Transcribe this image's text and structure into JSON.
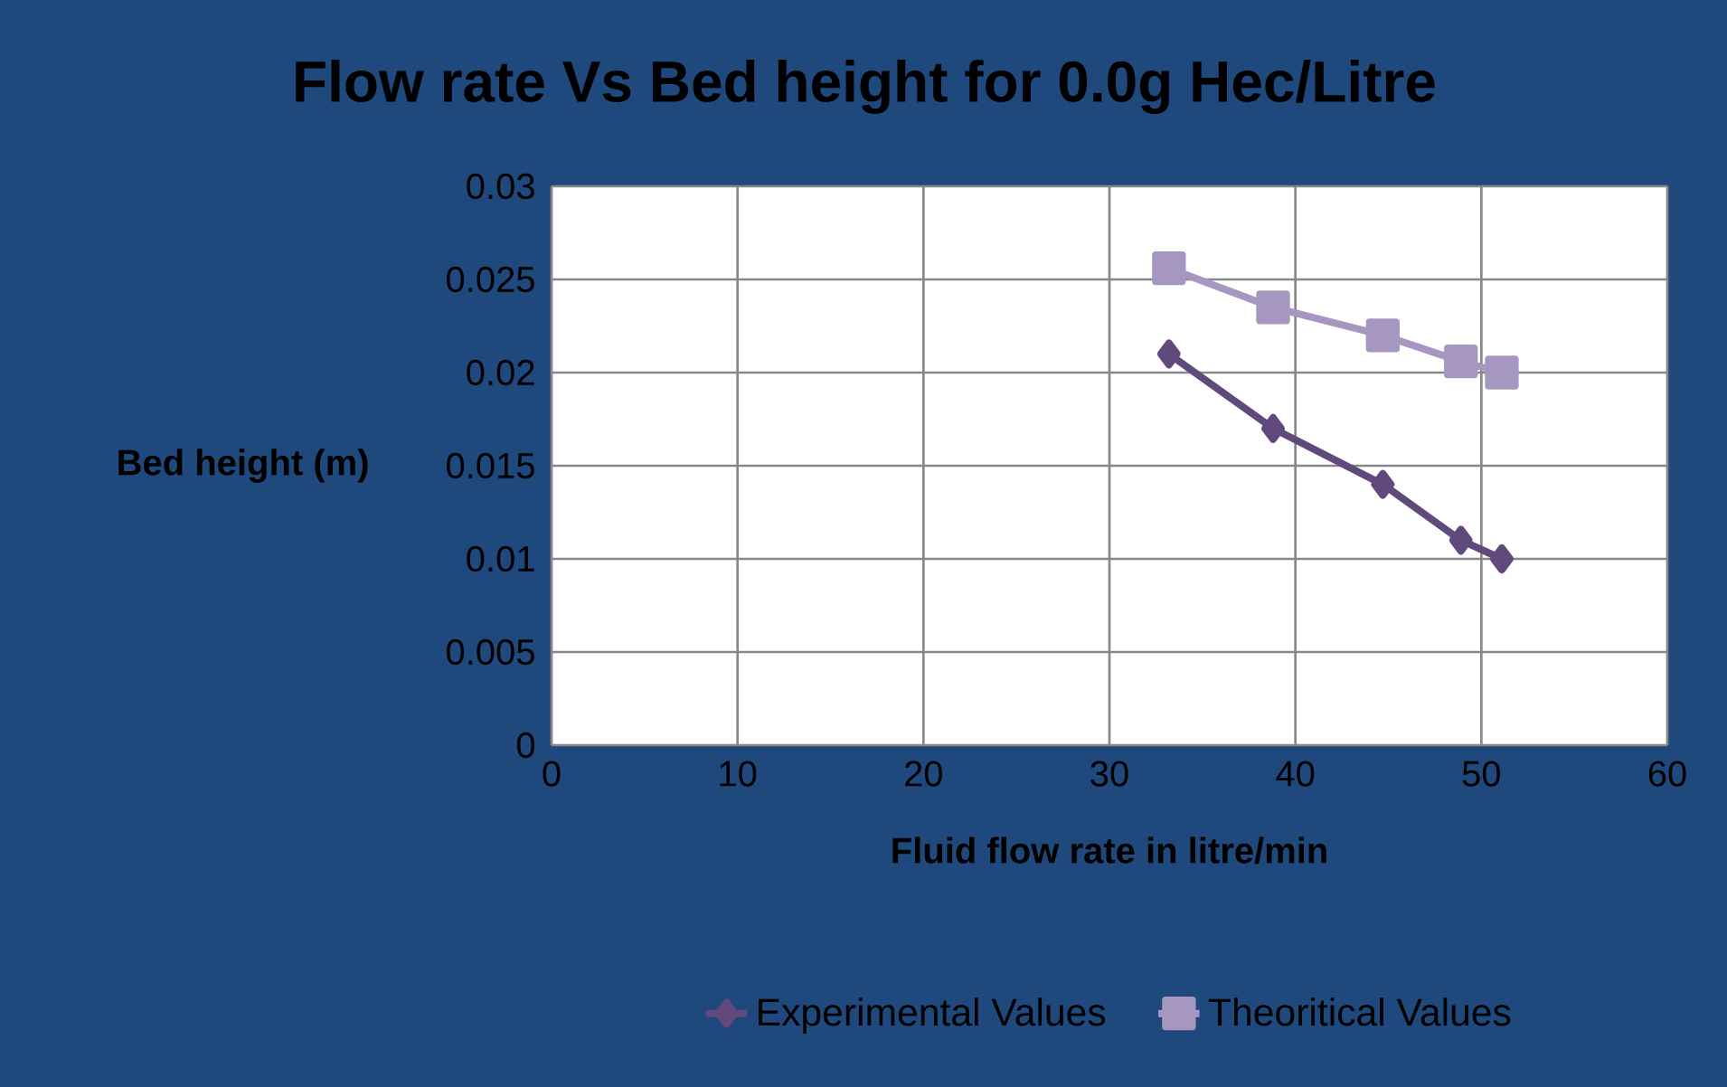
{
  "chart_data": {
    "type": "line",
    "title": "Flow rate Vs Bed height for 0.0g Hec/Litre",
    "xlabel": "Fluid flow rate in litre/min",
    "ylabel": "Bed height (m)",
    "series": [
      {
        "name": "Experimental Values",
        "color": "#604a7b",
        "marker": "diamond",
        "x": [
          33.2,
          38.8,
          44.7,
          48.9,
          51.1
        ],
        "values": [
          0.021,
          0.017,
          0.014,
          0.011,
          0.01
        ]
      },
      {
        "name": "Theoritical Values",
        "color": "#a597bf",
        "marker": "square",
        "x": [
          33.2,
          38.8,
          44.7,
          48.9,
          51.1
        ],
        "values": [
          0.0256,
          0.0235,
          0.022,
          0.0206,
          0.02
        ]
      }
    ],
    "xlim": [
      0,
      60
    ],
    "xticks": [
      0,
      10,
      20,
      30,
      40,
      50,
      60
    ],
    "ylim": [
      0,
      0.03
    ],
    "yticks": [
      0,
      0.005,
      0.01,
      0.015,
      0.02,
      0.025,
      0.03
    ],
    "grid": true,
    "legend": "bottom",
    "line_style": "solid"
  }
}
